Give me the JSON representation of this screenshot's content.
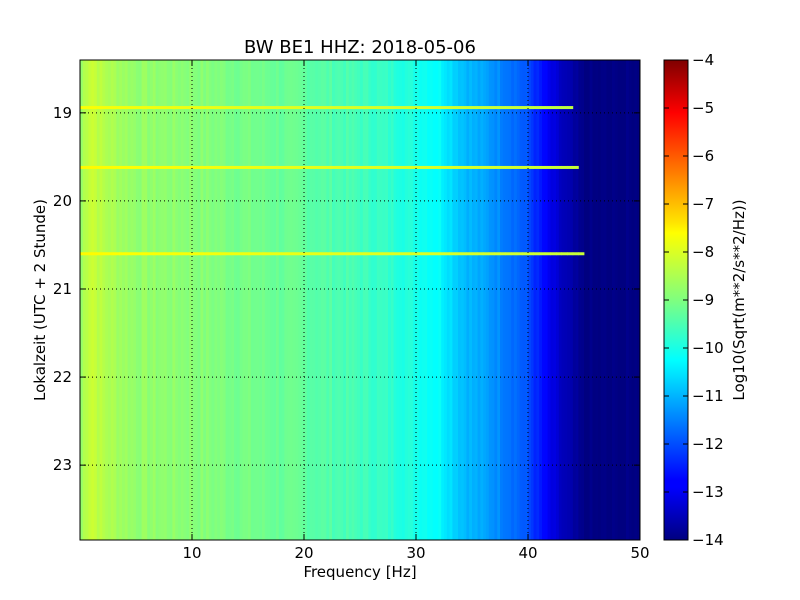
{
  "chart_data": {
    "type": "heatmap",
    "title": "BW BE1 HHZ: 2018-05-06",
    "xlabel": "Frequency [Hz]",
    "ylabel": "Lokalzeit (UTC + 2 Stunde)",
    "xlim": [
      0,
      50
    ],
    "ylim": [
      18.4,
      23.85
    ],
    "y_inverted": true,
    "x_ticks": [
      10,
      20,
      30,
      40,
      50
    ],
    "x_tick_labels": [
      "10",
      "20",
      "30",
      "40",
      "50"
    ],
    "y_ticks": [
      19,
      20,
      21,
      22,
      23
    ],
    "y_tick_labels": [
      "19",
      "20",
      "21",
      "22",
      "23"
    ],
    "grid": true,
    "colormap": "jet",
    "colorbar": {
      "label": "Log10(Sqrt(m**2/s**2/Hz))",
      "min": -14,
      "max": -4,
      "ticks": [
        -4,
        -5,
        -6,
        -7,
        -8,
        -9,
        -10,
        -11,
        -12,
        -13,
        -14
      ],
      "tick_labels": [
        "−4",
        "−5",
        "−6",
        "−7",
        "−8",
        "−9",
        "−10",
        "−11",
        "−12",
        "−13",
        "−14"
      ]
    },
    "spectral_profile": {
      "frequency_hz": [
        0,
        0.5,
        1,
        2,
        5,
        10,
        15,
        20,
        25,
        28,
        30,
        32,
        33,
        34,
        35,
        37,
        39,
        40,
        41,
        42,
        43,
        44,
        45,
        46,
        50
      ],
      "level": [
        -8.9,
        -8.4,
        -8.2,
        -8.5,
        -8.8,
        -8.9,
        -9.1,
        -9.3,
        -9.6,
        -9.8,
        -10.0,
        -10.2,
        -10.5,
        -10.8,
        -11.0,
        -11.3,
        -11.7,
        -12.0,
        -12.5,
        -13.0,
        -13.4,
        -13.7,
        -14.0,
        -14.0,
        -14.0
      ]
    },
    "bright_lines": [
      {
        "hour": 18.94,
        "f_max_hz": 44,
        "level": -8.1
      },
      {
        "hour": 19.62,
        "f_max_hz": 44.5,
        "level": -8.0
      },
      {
        "hour": 20.6,
        "f_max_hz": 45,
        "level": -8.0
      }
    ]
  }
}
